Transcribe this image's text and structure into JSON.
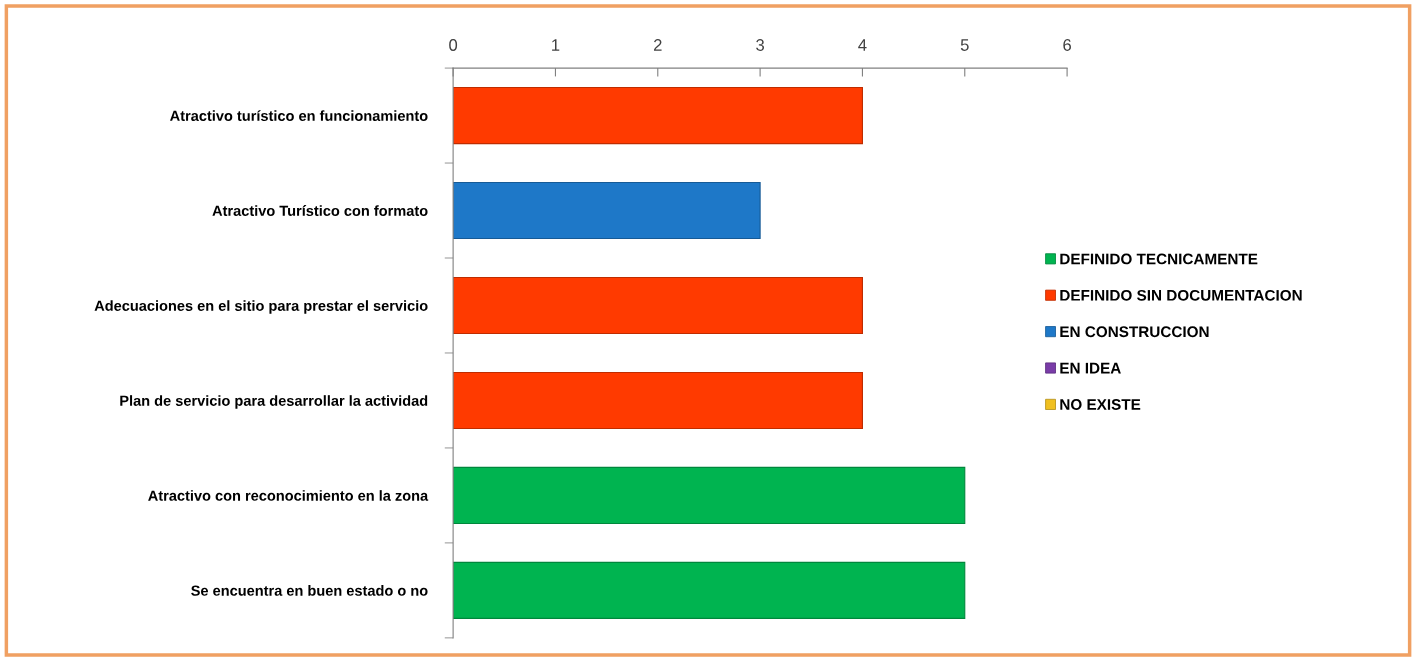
{
  "chart_data": {
    "type": "bar",
    "orientation": "horizontal",
    "stacked": true,
    "categories": [
      "Atractivo turístico en funcionamiento",
      "Atractivo Turístico con formato",
      "Adecuaciones en el sitio para prestar el servicio",
      "Plan de servicio para desarrollar la actividad",
      "Atractivo con reconocimiento en la zona",
      "Se encuentra en buen estado o no"
    ],
    "series": [
      {
        "name": "DEFINIDO TECNICAMENTE",
        "color": "#00b450",
        "values": [
          null,
          null,
          null,
          null,
          5,
          5
        ]
      },
      {
        "name": "DEFINIDO SIN DOCUMENTACION",
        "color": "#ff3a00",
        "values": [
          4,
          null,
          4,
          4,
          null,
          null
        ]
      },
      {
        "name": "EN CONSTRUCCION",
        "color": "#1e78c8",
        "values": [
          null,
          3,
          null,
          null,
          null,
          null
        ]
      },
      {
        "name": "EN IDEA",
        "color": "#7a3ca8",
        "values": [
          null,
          null,
          null,
          null,
          null,
          null
        ]
      },
      {
        "name": "NO EXISTE",
        "color": "#f0c020",
        "values": [
          null,
          null,
          null,
          null,
          null,
          null
        ]
      }
    ],
    "xlim": [
      0,
      6
    ],
    "xticks": [
      0,
      1,
      2,
      3,
      4,
      5,
      6
    ],
    "grid": false,
    "legend": "right"
  }
}
